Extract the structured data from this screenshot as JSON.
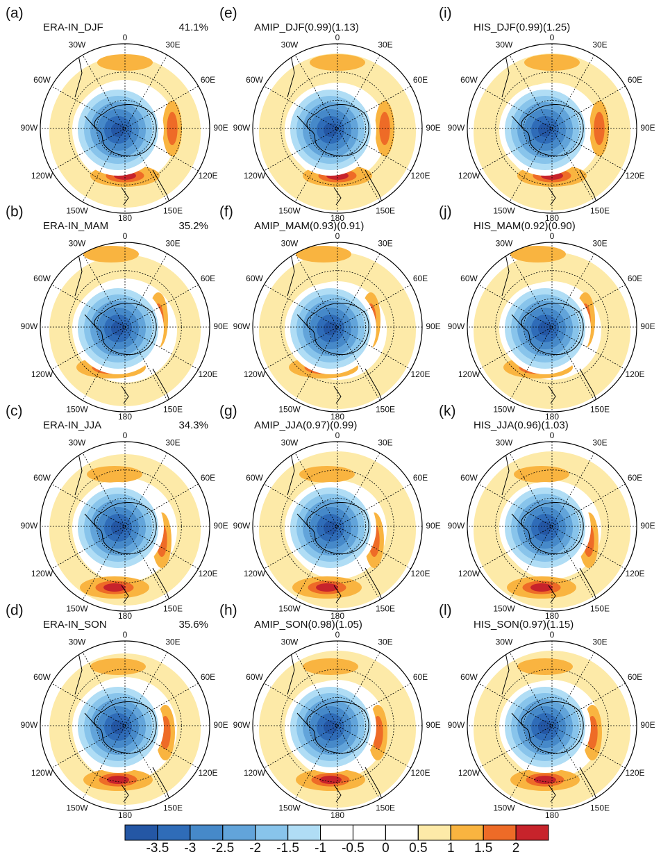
{
  "panels": [
    {
      "label": "(a)",
      "title": "ERA-IN_DJF",
      "note": "41.1%"
    },
    {
      "label": "(b)",
      "title": "ERA-IN_MAM",
      "note": "35.2%"
    },
    {
      "label": "(c)",
      "title": "ERA-IN_JJA",
      "note": "34.3%"
    },
    {
      "label": "(d)",
      "title": "ERA-IN_SON",
      "note": "35.6%"
    },
    {
      "label": "(e)",
      "title": "AMIP_DJF(0.99)(1.13)"
    },
    {
      "label": "(f)",
      "title": "AMIP_MAM(0.93)(0.91)"
    },
    {
      "label": "(g)",
      "title": "AMIP_JJA(0.97)(0.99)"
    },
    {
      "label": "(h)",
      "title": "AMIP_SON(0.98)(1.05)"
    },
    {
      "label": "(i)",
      "title": "HIS_DJF(0.99)(1.25)"
    },
    {
      "label": "(j)",
      "title": "HIS_MAM(0.92)(0.90)"
    },
    {
      "label": "(k)",
      "title": "HIS_JJA(0.96)(1.03)"
    },
    {
      "label": "(l)",
      "title": "HIS_SON(0.97)(1.15)"
    }
  ],
  "longitudes": [
    "0",
    "30E",
    "60E",
    "90E",
    "120E",
    "150E",
    "180",
    "150W",
    "120W",
    "90W",
    "60W",
    "30W"
  ],
  "colorbar": {
    "levels": [
      -3.5,
      -3,
      -2.5,
      -2,
      -1.5,
      -1,
      -0.5,
      0,
      0.5,
      1,
      1.5,
      2
    ],
    "colors": [
      "#2457a5",
      "#2f6cb8",
      "#4689c9",
      "#62a4da",
      "#88c4eb",
      "#b0ddf5",
      "#ffffff",
      "#ffffff",
      "#ffffff",
      "#fdeaa8",
      "#f9b440",
      "#ee6b27",
      "#c7232b"
    ]
  }
}
